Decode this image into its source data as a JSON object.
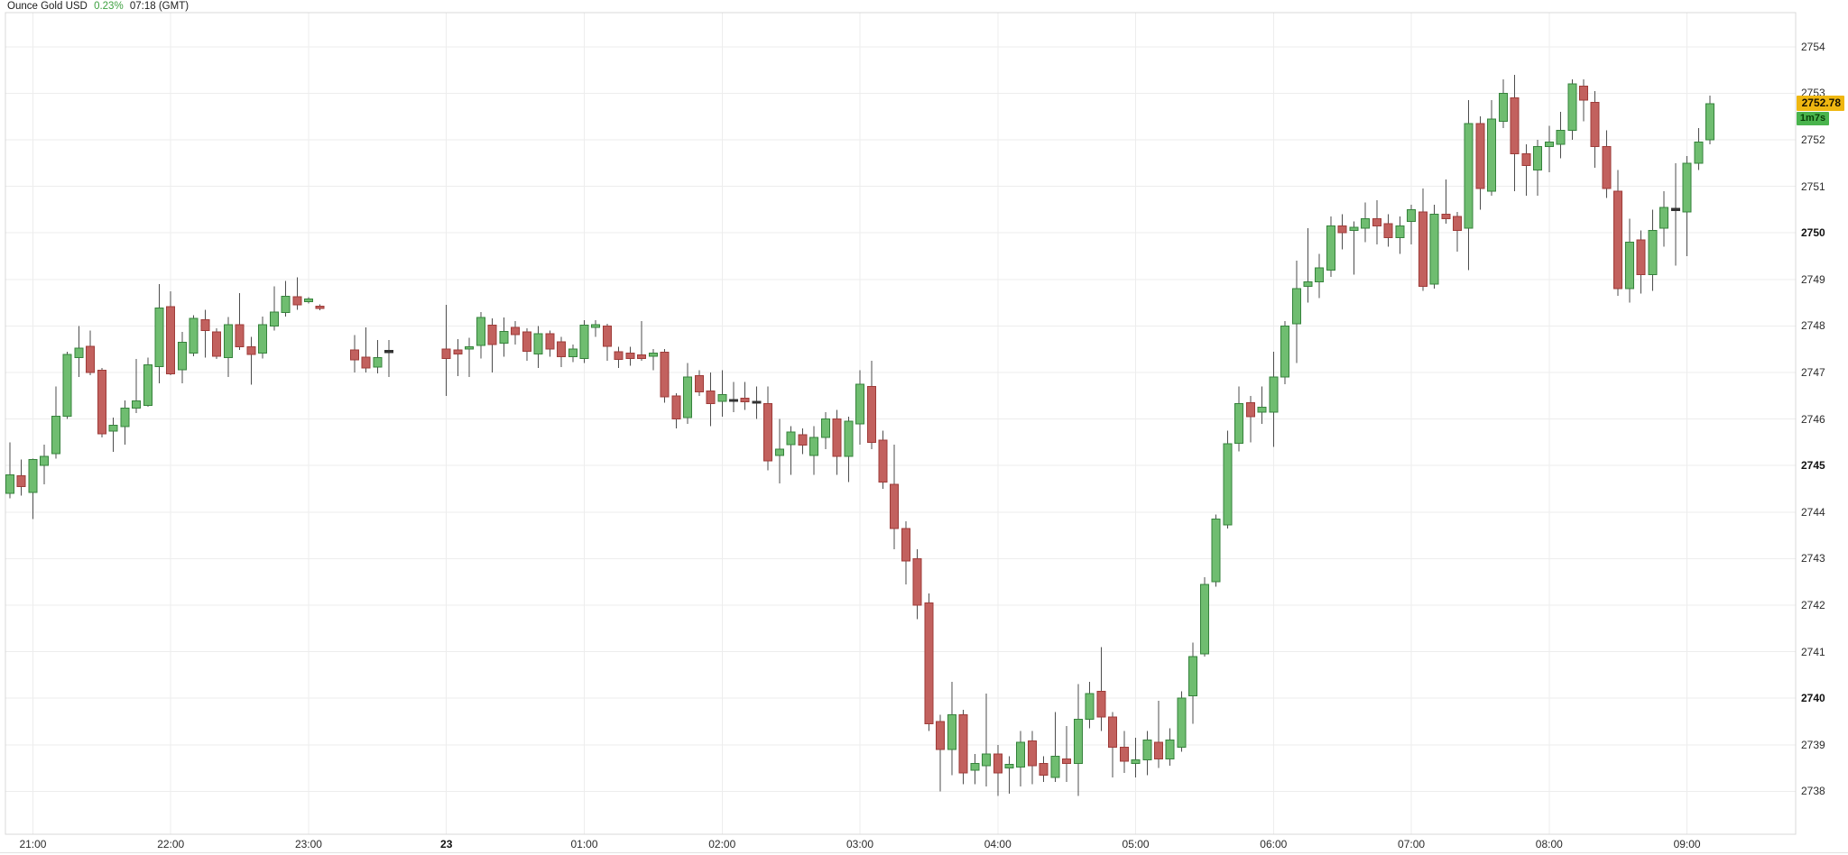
{
  "title": {
    "instrument": "Ounce Gold USD",
    "change_percent": "0.23%",
    "time": "07:18 (GMT)"
  },
  "price_axis": {
    "last_price": "2752.78",
    "countdown": "1m7s",
    "ticks": [
      {
        "price": 2754,
        "label": "2754",
        "bold": false
      },
      {
        "price": 2753,
        "label": "2753",
        "bold": false
      },
      {
        "price": 2752,
        "label": "2752",
        "bold": false
      },
      {
        "price": 2751,
        "label": "2751",
        "bold": false
      },
      {
        "price": 2750,
        "label": "2750",
        "bold": true
      },
      {
        "price": 2749,
        "label": "2749",
        "bold": false
      },
      {
        "price": 2748,
        "label": "2748",
        "bold": false
      },
      {
        "price": 2747,
        "label": "2747",
        "bold": false
      },
      {
        "price": 2746,
        "label": "2746",
        "bold": false
      },
      {
        "price": 2745,
        "label": "2745",
        "bold": true
      },
      {
        "price": 2744,
        "label": "2744",
        "bold": false
      },
      {
        "price": 2743,
        "label": "2743",
        "bold": false
      },
      {
        "price": 2742,
        "label": "2742",
        "bold": false
      },
      {
        "price": 2741,
        "label": "2741",
        "bold": false
      },
      {
        "price": 2740,
        "label": "2740",
        "bold": true
      },
      {
        "price": 2739,
        "label": "2739",
        "bold": false
      },
      {
        "price": 2738,
        "label": "2738",
        "bold": false
      }
    ]
  },
  "time_axis": {
    "ticks": [
      {
        "slot": 2,
        "label": "21:00",
        "bold": false
      },
      {
        "slot": 14,
        "label": "22:00",
        "bold": false
      },
      {
        "slot": 26,
        "label": "23:00",
        "bold": false
      },
      {
        "slot": 38,
        "label": "23",
        "bold": true
      },
      {
        "slot": 50,
        "label": "01:00",
        "bold": false
      },
      {
        "slot": 62,
        "label": "02:00",
        "bold": false
      },
      {
        "slot": 74,
        "label": "03:00",
        "bold": false
      },
      {
        "slot": 86,
        "label": "04:00",
        "bold": false
      },
      {
        "slot": 98,
        "label": "05:00",
        "bold": false
      },
      {
        "slot": 110,
        "label": "06:00",
        "bold": false
      },
      {
        "slot": 122,
        "label": "07:00",
        "bold": false
      },
      {
        "slot": 134,
        "label": "08:00",
        "bold": false
      },
      {
        "slot": 146,
        "label": "09:00",
        "bold": false
      }
    ]
  },
  "colors": {
    "up_fill": "#6fbd70",
    "up_border": "#35823b",
    "down_fill": "#c2615e",
    "down_border": "#9e3b38",
    "doji": "#333333",
    "wick": "#4d4d4d",
    "grid": "#ededed",
    "plot_border": "#d8d8d8",
    "last_price_bg": "#efb711",
    "countdown_bg": "#49b44d",
    "countdown_text": "#073f07",
    "change_color": "#3fa142"
  },
  "chart_data": {
    "type": "candlestick",
    "title": "Ounce Gold USD, 5-minute candles",
    "interval": "5min",
    "x_unit": "slot index, 5 minutes per slot, slot 0 = 20:50, gaps at slots 28-29 and 34-37",
    "ylim": [
      2737.1,
      2754.7
    ],
    "columns": [
      "slot",
      "time",
      "open",
      "high",
      "low",
      "close"
    ],
    "candles": [
      [
        0,
        "20:50",
        2744.4,
        2745.5,
        2744.3,
        2744.8
      ],
      [
        1,
        "20:55",
        2744.78,
        2745.13,
        2744.35,
        2744.55
      ],
      [
        2,
        "21:00",
        2744.42,
        2745.15,
        2743.85,
        2745.13
      ],
      [
        3,
        "21:05",
        2745.0,
        2745.45,
        2744.6,
        2745.2
      ],
      [
        4,
        "21:10",
        2745.26,
        2746.7,
        2745.15,
        2746.06
      ],
      [
        5,
        "21:15",
        2746.06,
        2747.45,
        2746.0,
        2747.39
      ],
      [
        6,
        "21:20",
        2747.32,
        2748.0,
        2746.9,
        2747.52
      ],
      [
        7,
        "21:25",
        2747.56,
        2747.9,
        2746.94,
        2747.0
      ],
      [
        8,
        "21:30",
        2747.05,
        2747.1,
        2745.6,
        2745.68
      ],
      [
        9,
        "21:35",
        2745.74,
        2746.03,
        2745.29,
        2745.87
      ],
      [
        10,
        "21:40",
        2745.84,
        2746.4,
        2745.45,
        2746.23
      ],
      [
        11,
        "21:45",
        2746.23,
        2747.29,
        2746.13,
        2746.39
      ],
      [
        12,
        "21:50",
        2746.29,
        2747.32,
        2746.26,
        2747.16
      ],
      [
        13,
        "21:55",
        2747.13,
        2748.9,
        2746.77,
        2748.39
      ],
      [
        14,
        "22:00",
        2748.41,
        2748.74,
        2746.94,
        2746.97
      ],
      [
        15,
        "22:05",
        2747.06,
        2747.87,
        2746.77,
        2747.65
      ],
      [
        16,
        "22:10",
        2747.42,
        2748.23,
        2747.35,
        2748.16
      ],
      [
        17,
        "22:15",
        2748.13,
        2748.35,
        2747.32,
        2747.9
      ],
      [
        18,
        "22:20",
        2747.87,
        2747.95,
        2747.29,
        2747.35
      ],
      [
        19,
        "22:25",
        2747.32,
        2748.19,
        2746.9,
        2748.03
      ],
      [
        20,
        "22:30",
        2748.03,
        2748.71,
        2747.48,
        2747.55
      ],
      [
        21,
        "22:35",
        2747.55,
        2747.77,
        2746.74,
        2747.39
      ],
      [
        22,
        "22:40",
        2747.42,
        2748.2,
        2747.3,
        2748.03
      ],
      [
        23,
        "22:45",
        2748.0,
        2748.85,
        2747.9,
        2748.3
      ],
      [
        24,
        "22:50",
        2748.29,
        2748.97,
        2748.2,
        2748.64
      ],
      [
        25,
        "22:55",
        2748.63,
        2749.04,
        2748.35,
        2748.45
      ],
      [
        26,
        "23:00",
        2748.52,
        2748.62,
        2748.48,
        2748.58
      ],
      [
        27,
        "23:05",
        2748.42,
        2748.46,
        2748.34,
        2748.38
      ],
      [
        30,
        "23:20",
        2747.48,
        2747.8,
        2747.0,
        2747.27
      ],
      [
        31,
        "23:25",
        2747.33,
        2747.97,
        2747.0,
        2747.1
      ],
      [
        32,
        "23:30",
        2747.12,
        2747.7,
        2746.98,
        2747.32
      ],
      [
        33,
        "23:35",
        2747.45,
        2747.7,
        2746.9,
        2747.45
      ],
      [
        38,
        "00:00",
        2747.5,
        2748.45,
        2746.5,
        2747.3
      ],
      [
        39,
        "00:05",
        2747.48,
        2747.72,
        2746.92,
        2747.4
      ],
      [
        40,
        "00:10",
        2747.5,
        2747.75,
        2746.9,
        2747.55
      ],
      [
        41,
        "00:15",
        2747.58,
        2748.3,
        2747.3,
        2748.18
      ],
      [
        42,
        "00:20",
        2748.02,
        2748.16,
        2747.0,
        2747.6
      ],
      [
        43,
        "00:25",
        2747.63,
        2748.18,
        2747.34,
        2747.88
      ],
      [
        44,
        "00:30",
        2747.97,
        2748.1,
        2747.6,
        2747.81
      ],
      [
        45,
        "00:35",
        2747.87,
        2747.95,
        2747.25,
        2747.46
      ],
      [
        46,
        "00:40",
        2747.4,
        2748.0,
        2747.1,
        2747.83
      ],
      [
        47,
        "00:45",
        2747.83,
        2747.9,
        2747.34,
        2747.5
      ],
      [
        48,
        "00:50",
        2747.66,
        2747.77,
        2747.12,
        2747.34
      ],
      [
        49,
        "00:55",
        2747.34,
        2747.6,
        2747.22,
        2747.5
      ],
      [
        50,
        "01:00",
        2747.3,
        2748.12,
        2747.2,
        2748.02
      ],
      [
        51,
        "01:05",
        2747.97,
        2748.12,
        2747.77,
        2748.03
      ],
      [
        52,
        "01:10",
        2748.0,
        2748.05,
        2747.25,
        2747.56
      ],
      [
        53,
        "01:15",
        2747.45,
        2747.55,
        2747.1,
        2747.28
      ],
      [
        54,
        "01:20",
        2747.42,
        2747.55,
        2747.15,
        2747.3
      ],
      [
        55,
        "01:25",
        2747.38,
        2748.1,
        2747.25,
        2747.3
      ],
      [
        56,
        "01:30",
        2747.35,
        2747.5,
        2747.05,
        2747.42
      ],
      [
        57,
        "01:35",
        2747.44,
        2747.5,
        2746.35,
        2746.48
      ],
      [
        58,
        "01:40",
        2746.5,
        2746.55,
        2745.8,
        2746.0
      ],
      [
        59,
        "01:45",
        2746.03,
        2747.2,
        2745.9,
        2746.9
      ],
      [
        60,
        "01:50",
        2746.93,
        2747.05,
        2746.5,
        2746.58
      ],
      [
        61,
        "01:55",
        2746.6,
        2747.0,
        2745.85,
        2746.33
      ],
      [
        62,
        "02:00",
        2746.38,
        2747.05,
        2746.05,
        2746.53
      ],
      [
        63,
        "02:05",
        2746.4,
        2746.8,
        2746.15,
        2746.4
      ],
      [
        64,
        "02:10",
        2746.45,
        2746.8,
        2746.2,
        2746.37
      ],
      [
        65,
        "02:15",
        2746.36,
        2746.7,
        2746.0,
        2746.36
      ],
      [
        66,
        "02:20",
        2746.33,
        2746.7,
        2744.9,
        2745.1
      ],
      [
        67,
        "02:25",
        2745.22,
        2746.0,
        2744.62,
        2745.35
      ],
      [
        68,
        "02:30",
        2745.45,
        2745.85,
        2744.8,
        2745.72
      ],
      [
        69,
        "02:35",
        2745.66,
        2745.8,
        2745.25,
        2745.44
      ],
      [
        70,
        "02:40",
        2745.22,
        2745.85,
        2744.8,
        2745.6
      ],
      [
        71,
        "02:45",
        2745.6,
        2746.15,
        2745.35,
        2746.0
      ],
      [
        72,
        "02:50",
        2746.0,
        2746.2,
        2744.8,
        2745.2
      ],
      [
        73,
        "02:55",
        2745.2,
        2746.05,
        2744.65,
        2745.95
      ],
      [
        74,
        "03:00",
        2745.9,
        2747.05,
        2745.45,
        2746.75
      ],
      [
        75,
        "03:05",
        2746.7,
        2747.25,
        2745.35,
        2745.5
      ],
      [
        76,
        "03:10",
        2745.55,
        2745.75,
        2744.5,
        2744.65
      ],
      [
        77,
        "03:15",
        2744.6,
        2745.45,
        2743.2,
        2743.65
      ],
      [
        78,
        "03:20",
        2743.65,
        2743.8,
        2742.45,
        2742.95
      ],
      [
        79,
        "03:25",
        2743.0,
        2743.2,
        2741.7,
        2742.0
      ],
      [
        80,
        "03:30",
        2742.05,
        2742.25,
        2739.3,
        2739.45
      ],
      [
        81,
        "03:35",
        2739.5,
        2739.65,
        2738.0,
        2738.9
      ],
      [
        82,
        "03:40",
        2738.9,
        2740.35,
        2738.35,
        2739.65
      ],
      [
        83,
        "03:45",
        2739.65,
        2739.75,
        2738.15,
        2738.4
      ],
      [
        84,
        "03:50",
        2738.45,
        2738.8,
        2738.15,
        2738.6
      ],
      [
        85,
        "03:55",
        2738.55,
        2740.1,
        2738.1,
        2738.8
      ],
      [
        86,
        "04:00",
        2738.8,
        2739.0,
        2737.9,
        2738.4
      ],
      [
        87,
        "04:05",
        2738.5,
        2738.75,
        2737.95,
        2738.58
      ],
      [
        88,
        "04:10",
        2738.52,
        2739.3,
        2738.1,
        2739.05
      ],
      [
        89,
        "04:15",
        2739.08,
        2739.3,
        2738.15,
        2738.55
      ],
      [
        90,
        "04:20",
        2738.6,
        2738.75,
        2738.2,
        2738.35
      ],
      [
        91,
        "04:25",
        2738.3,
        2739.7,
        2738.2,
        2738.75
      ],
      [
        92,
        "04:30",
        2738.7,
        2739.4,
        2738.2,
        2738.6
      ],
      [
        93,
        "04:35",
        2738.6,
        2740.3,
        2737.9,
        2739.55
      ],
      [
        94,
        "04:40",
        2739.55,
        2740.35,
        2739.35,
        2740.1
      ],
      [
        95,
        "04:45",
        2740.15,
        2741.1,
        2739.3,
        2739.6
      ],
      [
        96,
        "04:50",
        2739.6,
        2739.7,
        2738.3,
        2738.95
      ],
      [
        97,
        "04:55",
        2738.95,
        2739.3,
        2738.4,
        2738.65
      ],
      [
        98,
        "05:00",
        2738.6,
        2739.15,
        2738.3,
        2738.68
      ],
      [
        99,
        "05:05",
        2738.68,
        2739.3,
        2738.35,
        2739.1
      ],
      [
        100,
        "05:10",
        2739.05,
        2739.95,
        2738.5,
        2738.7
      ],
      [
        101,
        "05:15",
        2738.7,
        2739.35,
        2738.55,
        2739.1
      ],
      [
        102,
        "05:20",
        2738.95,
        2740.15,
        2738.85,
        2740.0
      ],
      [
        103,
        "05:25",
        2740.05,
        2741.2,
        2739.45,
        2740.9
      ],
      [
        104,
        "05:30",
        2740.95,
        2742.6,
        2740.9,
        2742.45
      ],
      [
        105,
        "05:35",
        2742.5,
        2743.95,
        2742.4,
        2743.85
      ],
      [
        106,
        "05:40",
        2743.72,
        2745.75,
        2743.65,
        2745.47
      ],
      [
        107,
        "05:45",
        2745.48,
        2746.7,
        2745.3,
        2746.33
      ],
      [
        108,
        "05:50",
        2746.35,
        2746.5,
        2745.5,
        2746.05
      ],
      [
        109,
        "05:55",
        2746.15,
        2746.7,
        2745.9,
        2746.25
      ],
      [
        110,
        "06:00",
        2746.15,
        2747.45,
        2745.4,
        2746.9
      ],
      [
        111,
        "06:05",
        2746.9,
        2748.1,
        2746.75,
        2748.0
      ],
      [
        112,
        "06:10",
        2748.05,
        2749.4,
        2747.2,
        2748.8
      ],
      [
        113,
        "06:15",
        2748.85,
        2750.1,
        2748.5,
        2748.95
      ],
      [
        114,
        "06:20",
        2748.95,
        2749.55,
        2748.6,
        2749.25
      ],
      [
        115,
        "06:25",
        2749.2,
        2750.35,
        2749.05,
        2750.15
      ],
      [
        116,
        "06:30",
        2750.15,
        2750.4,
        2749.65,
        2750.0
      ],
      [
        117,
        "06:35",
        2750.05,
        2750.25,
        2749.1,
        2750.12
      ],
      [
        118,
        "06:40",
        2750.1,
        2750.65,
        2749.8,
        2750.3
      ],
      [
        119,
        "06:45",
        2750.3,
        2750.7,
        2749.75,
        2750.15
      ],
      [
        120,
        "06:50",
        2750.2,
        2750.4,
        2749.7,
        2749.9
      ],
      [
        121,
        "06:55",
        2749.9,
        2750.35,
        2749.55,
        2750.15
      ],
      [
        122,
        "07:00",
        2750.25,
        2750.6,
        2749.75,
        2750.5
      ],
      [
        123,
        "07:05",
        2750.45,
        2750.95,
        2748.75,
        2748.85
      ],
      [
        124,
        "07:10",
        2748.9,
        2750.6,
        2748.8,
        2750.4
      ],
      [
        125,
        "07:15",
        2750.4,
        2751.15,
        2750.2,
        2750.3
      ],
      [
        126,
        "07:20",
        2750.35,
        2750.45,
        2749.6,
        2750.05
      ],
      [
        127,
        "07:25",
        2750.1,
        2752.85,
        2749.2,
        2752.35
      ],
      [
        128,
        "07:30",
        2752.35,
        2752.5,
        2750.5,
        2750.95
      ],
      [
        129,
        "07:35",
        2750.9,
        2752.85,
        2750.8,
        2752.45
      ],
      [
        130,
        "07:40",
        2752.4,
        2753.3,
        2752.25,
        2753.0
      ],
      [
        131,
        "07:45",
        2752.9,
        2753.4,
        2750.9,
        2751.7
      ],
      [
        132,
        "07:50",
        2751.7,
        2751.9,
        2750.8,
        2751.45
      ],
      [
        133,
        "07:55",
        2751.35,
        2752.0,
        2750.8,
        2751.85
      ],
      [
        134,
        "08:00",
        2751.85,
        2752.3,
        2751.3,
        2751.95
      ],
      [
        135,
        "08:05",
        2751.9,
        2752.6,
        2751.6,
        2752.2
      ],
      [
        136,
        "08:10",
        2752.2,
        2753.3,
        2752.0,
        2753.2
      ],
      [
        137,
        "08:15",
        2753.15,
        2753.3,
        2752.4,
        2752.85
      ],
      [
        138,
        "08:20",
        2752.8,
        2753.05,
        2751.4,
        2751.85
      ],
      [
        139,
        "08:25",
        2751.85,
        2752.2,
        2750.75,
        2750.95
      ],
      [
        140,
        "08:30",
        2750.9,
        2751.35,
        2748.65,
        2748.8
      ],
      [
        141,
        "08:35",
        2748.8,
        2750.3,
        2748.5,
        2749.8
      ],
      [
        142,
        "08:40",
        2749.85,
        2750.05,
        2748.7,
        2749.1
      ],
      [
        143,
        "08:45",
        2749.1,
        2750.5,
        2748.75,
        2750.05
      ],
      [
        144,
        "08:50",
        2750.1,
        2750.9,
        2749.7,
        2750.55
      ],
      [
        145,
        "08:55",
        2750.5,
        2751.5,
        2749.3,
        2750.5
      ],
      [
        146,
        "09:00",
        2750.45,
        2751.65,
        2749.5,
        2751.5
      ],
      [
        147,
        "09:05",
        2751.5,
        2752.25,
        2751.35,
        2751.95
      ],
      [
        148,
        "09:10",
        2752.0,
        2752.95,
        2751.9,
        2752.78
      ]
    ]
  }
}
